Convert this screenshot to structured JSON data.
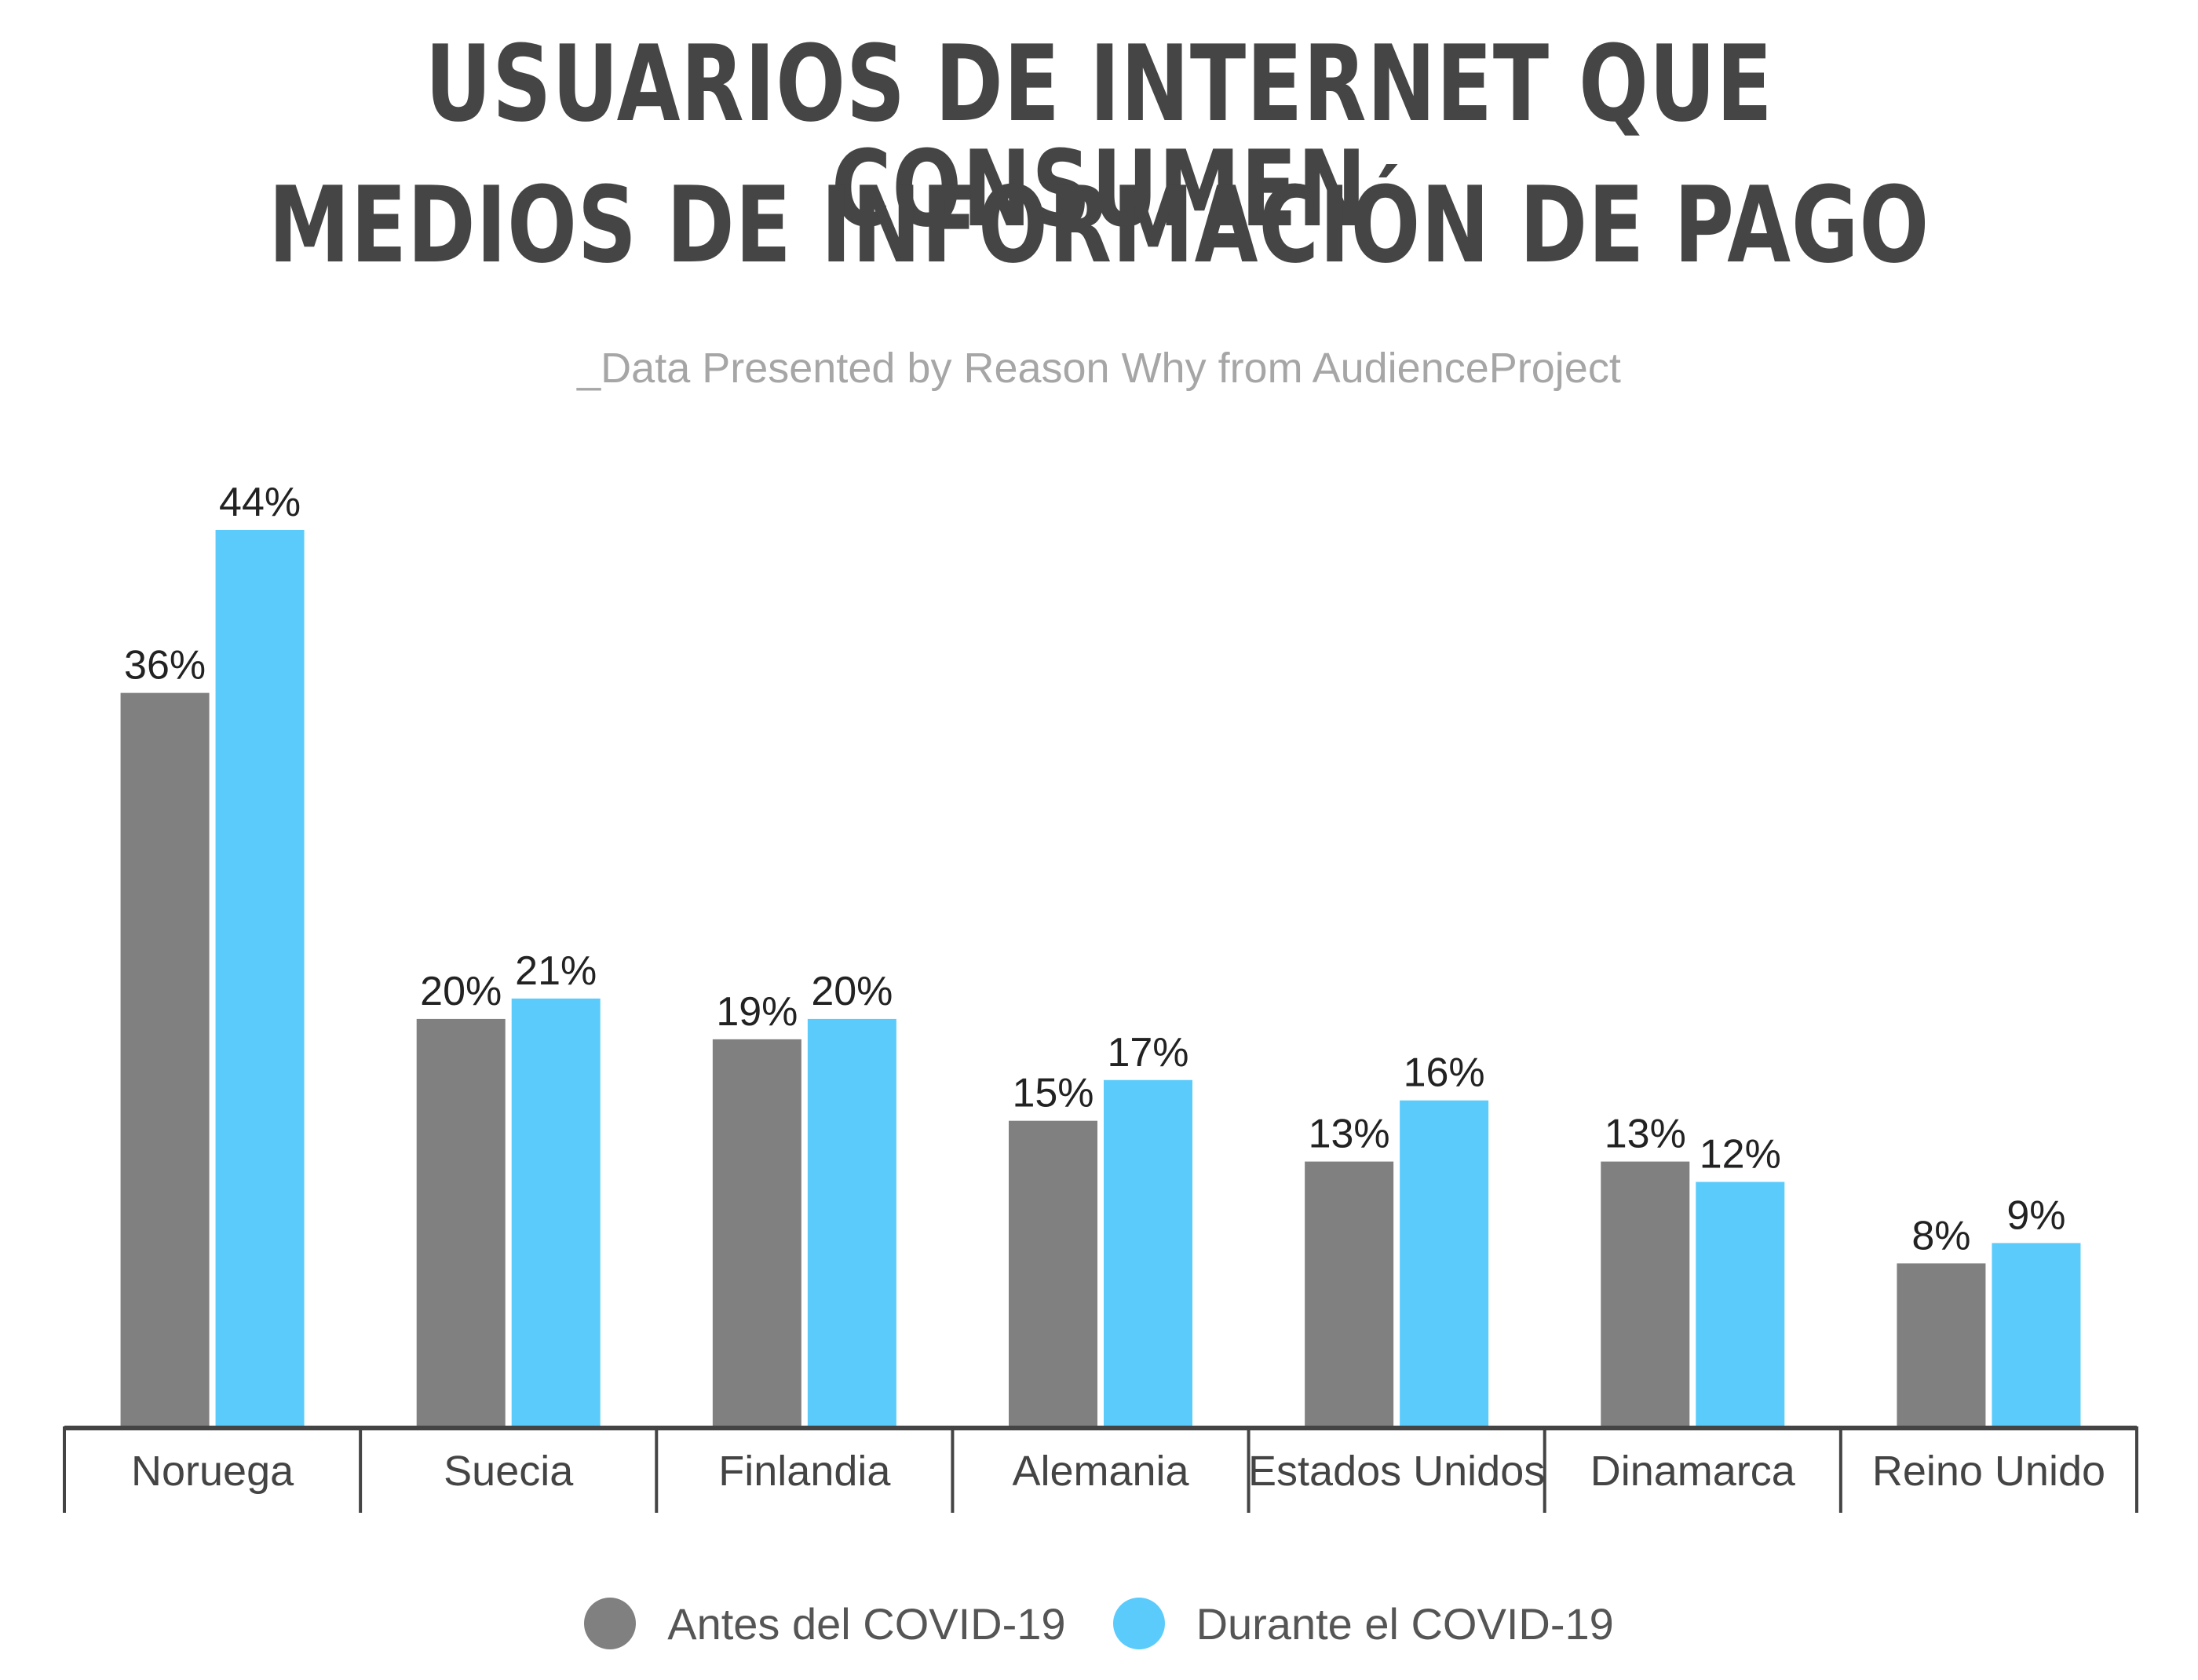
{
  "title": {
    "line1": "USUARIOS DE INTERNET QUE CONSUMEN",
    "line2": "MEDIOS DE INFORMACIÓN DE PAGO"
  },
  "subtitle": "_Data Presented by Reason Why from AudienceProject",
  "colors": {
    "antes": "#808080",
    "durante": "#5BCBFC",
    "axis": "#444444",
    "label": "#222222",
    "category": "#444444"
  },
  "chart_data": {
    "type": "bar",
    "categories": [
      "Noruega",
      "Suecia",
      "Finlandia",
      "Alemania",
      "Estados Unidos",
      "Dinamarca",
      "Reino Unido"
    ],
    "series": [
      {
        "name": "Antes del COVID-19",
        "values": [
          36,
          20,
          19,
          15,
          13,
          13,
          8
        ],
        "labels": [
          "36%",
          "20%",
          "19%",
          "15%",
          "13%",
          "13%",
          "8%"
        ],
        "color": "#808080"
      },
      {
        "name": "Durante el COVID-19",
        "values": [
          44,
          21,
          20,
          17,
          16,
          12,
          9
        ],
        "labels": [
          "44%",
          "21%",
          "20%",
          "17%",
          "16%",
          "12%",
          "9%"
        ],
        "color": "#5BCBFC"
      }
    ],
    "ylim": [
      0,
      44
    ],
    "grid": false,
    "legend": "bottom-center",
    "xlabel": "",
    "ylabel": ""
  }
}
